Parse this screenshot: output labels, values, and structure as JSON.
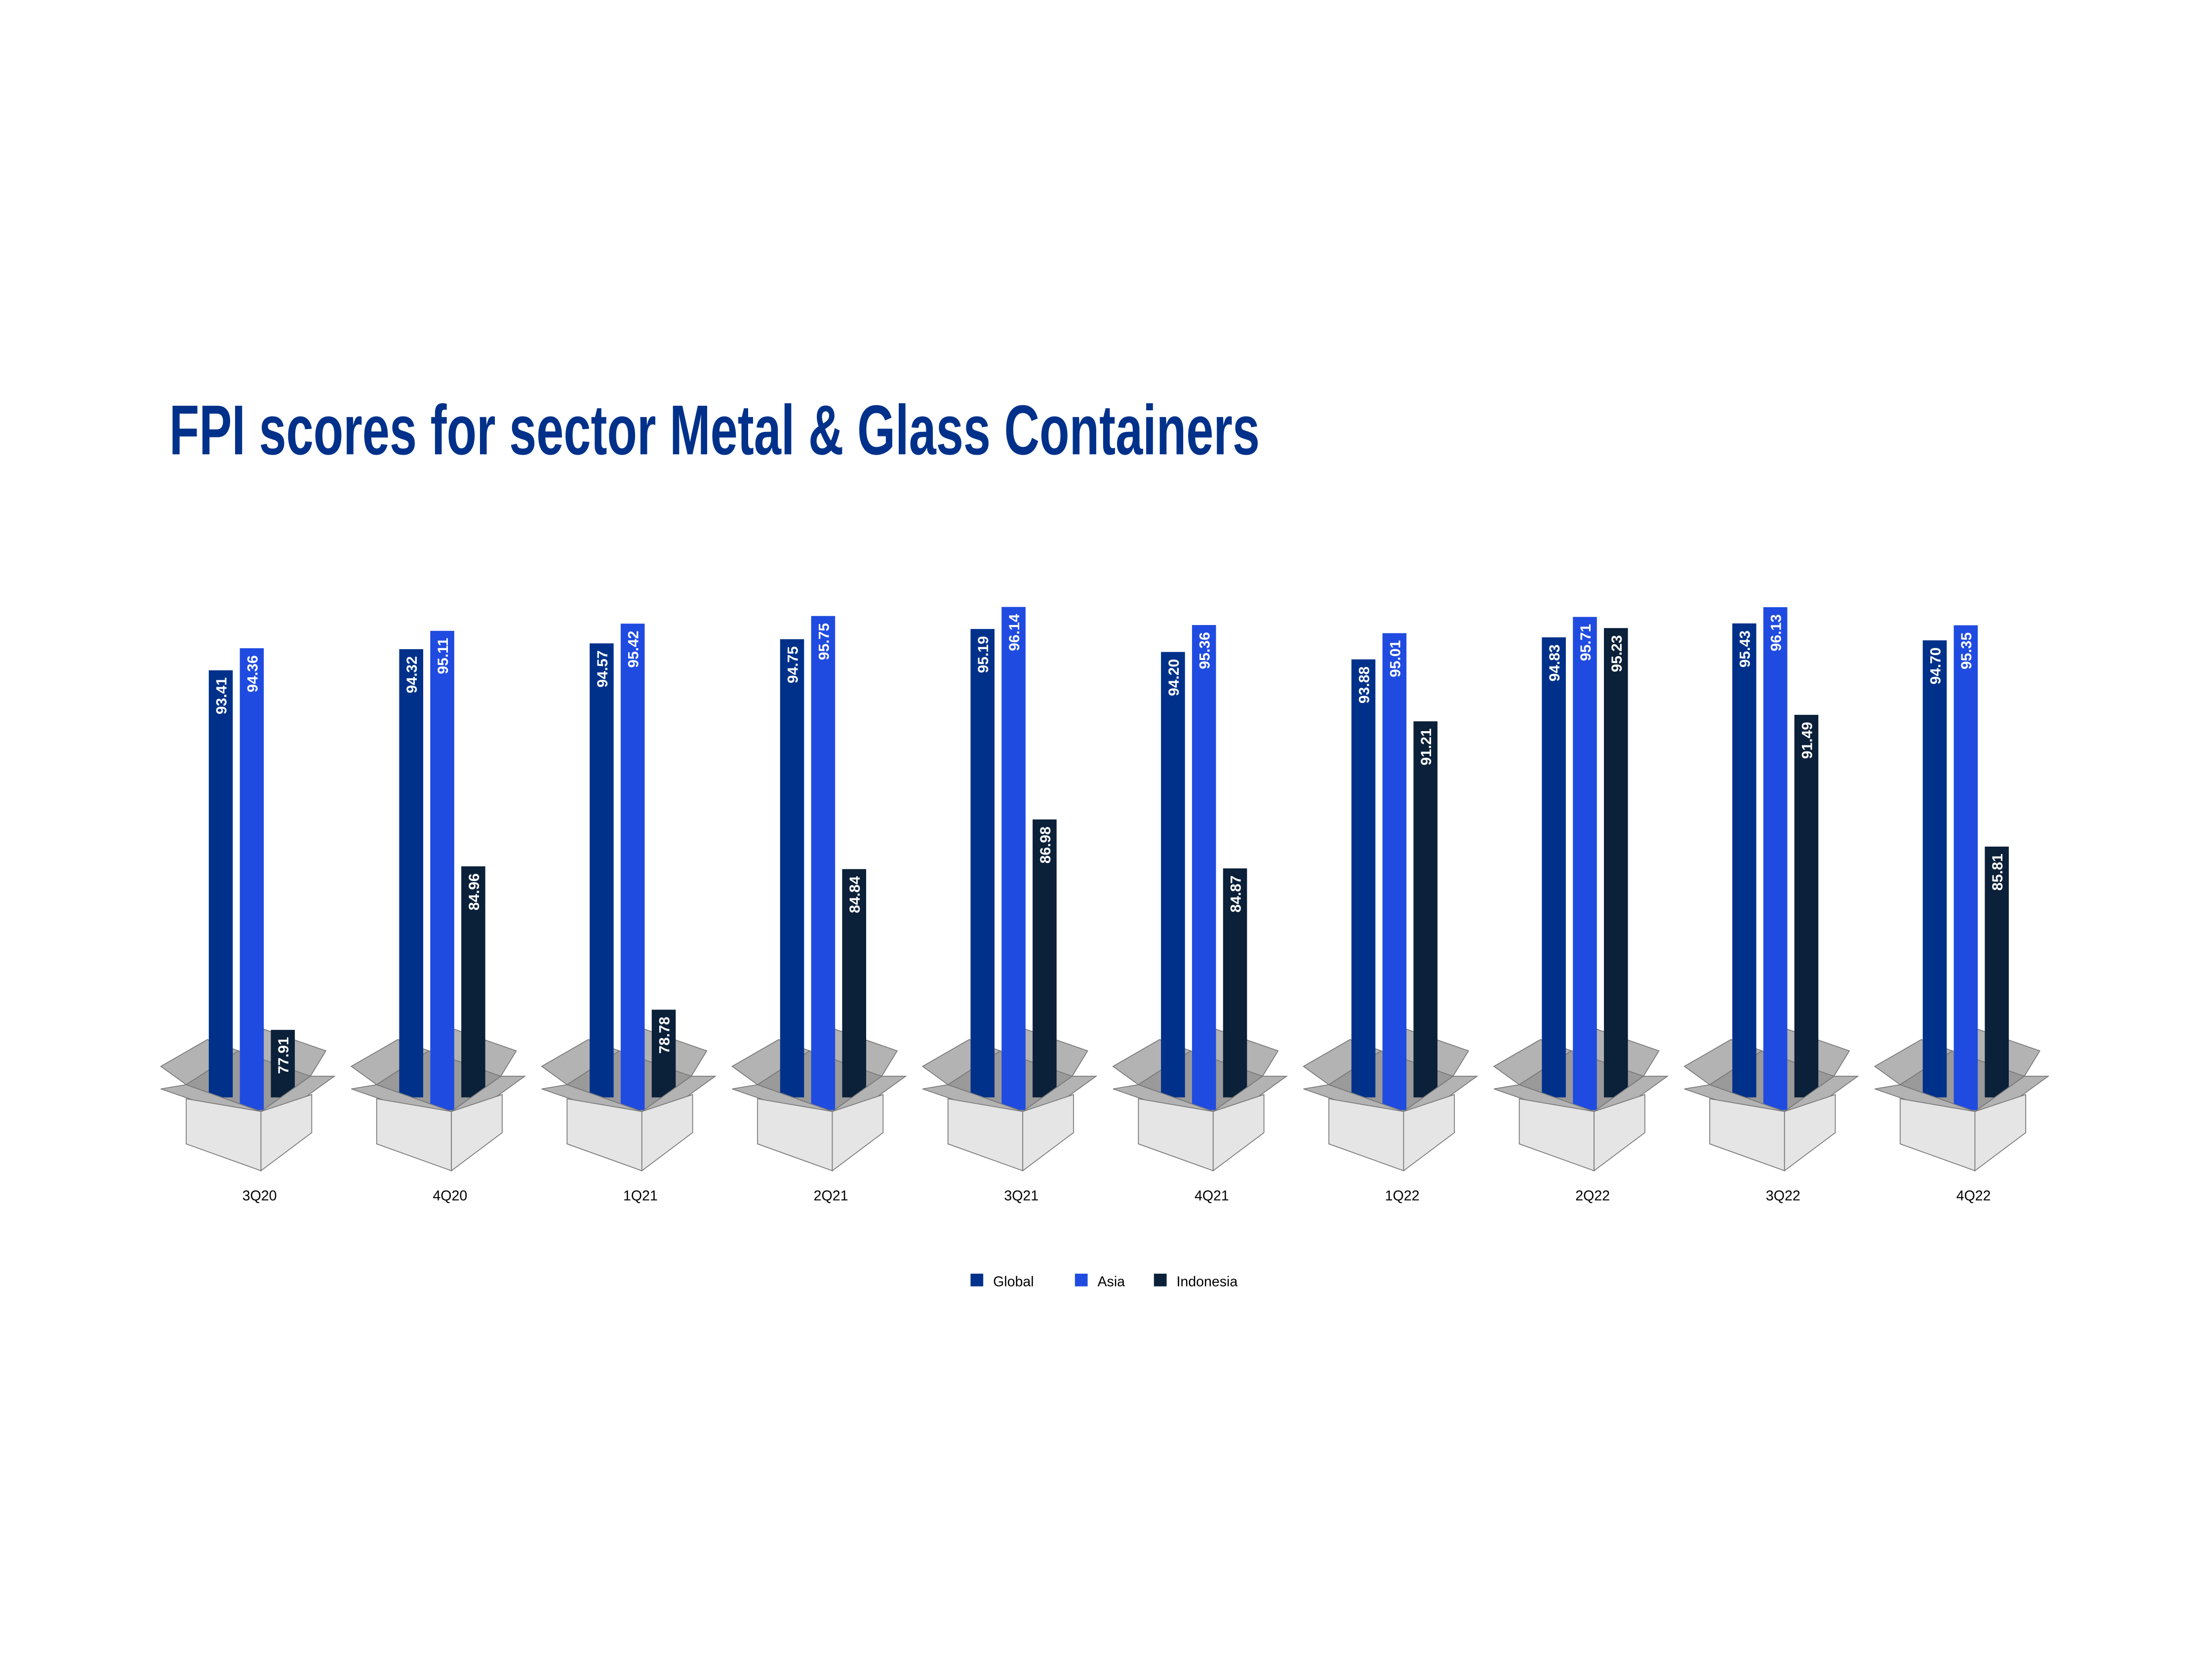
{
  "chart_data": {
    "type": "bar",
    "title": "FPI scores for sector Metal & Glass Containers",
    "xlabel": "",
    "ylabel": "",
    "ylim": [
      75,
      97
    ],
    "grid": false,
    "legend_position": "bottom",
    "categories": [
      "3Q20",
      "4Q20",
      "1Q21",
      "2Q21",
      "3Q21",
      "4Q21",
      "1Q22",
      "2Q22",
      "3Q22",
      "4Q22"
    ],
    "series": [
      {
        "name": "Global",
        "color": "#00318A",
        "values": [
          93.41,
          94.32,
          94.57,
          94.75,
          95.19,
          94.2,
          93.88,
          94.83,
          95.43,
          94.7
        ]
      },
      {
        "name": "Asia",
        "color": "#1F4BE0",
        "values": [
          94.36,
          95.11,
          95.42,
          95.75,
          96.14,
          95.36,
          95.01,
          95.71,
          96.13,
          95.35
        ]
      },
      {
        "name": "Indonesia",
        "color": "#0B2039",
        "values": [
          77.91,
          84.96,
          78.78,
          84.84,
          86.98,
          84.87,
          91.21,
          95.23,
          91.49,
          85.81
        ]
      }
    ]
  }
}
